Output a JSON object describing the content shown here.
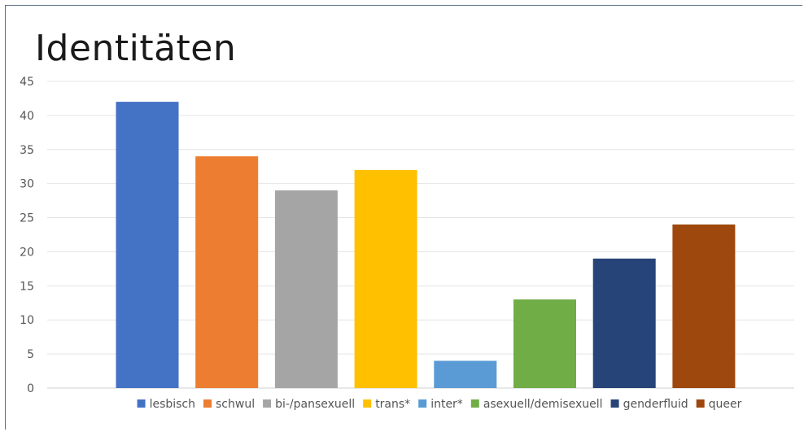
{
  "chart_data": {
    "type": "bar",
    "title": "Identitäten",
    "xlabel": "",
    "ylabel": "",
    "ylim": [
      0,
      45
    ],
    "yticks": [
      0,
      5,
      10,
      15,
      20,
      25,
      30,
      35,
      40,
      45
    ],
    "grid": true,
    "legend_position": "bottom",
    "series": [
      {
        "name": "lesbisch",
        "value": 42,
        "color": "#4472c4"
      },
      {
        "name": "schwul",
        "value": 34,
        "color": "#ed7d31"
      },
      {
        "name": "bi-/pansexuell",
        "value": 29,
        "color": "#a5a5a5"
      },
      {
        "name": "trans*",
        "value": 32,
        "color": "#ffc000"
      },
      {
        "name": "inter*",
        "value": 4,
        "color": "#5b9bd5"
      },
      {
        "name": "asexuell/demisexuell",
        "value": 13,
        "color": "#70ad47"
      },
      {
        "name": "genderfluid",
        "value": 19,
        "color": "#264478"
      },
      {
        "name": "queer",
        "value": 24,
        "color": "#9e480e"
      }
    ]
  }
}
